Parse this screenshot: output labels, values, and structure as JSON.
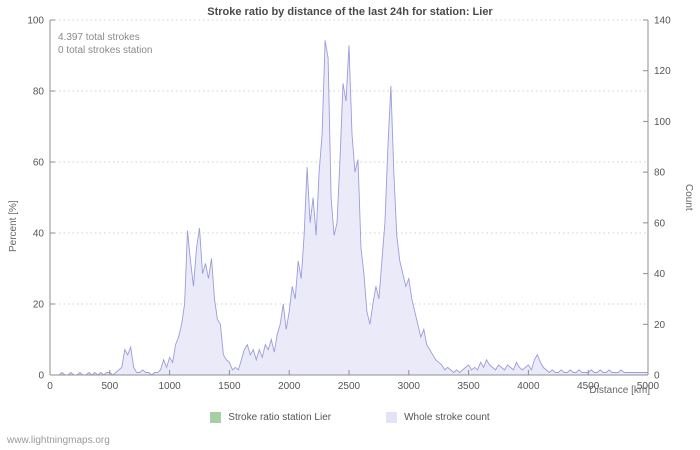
{
  "title": "Stroke ratio by distance of the last 24h for station: Lier",
  "annotations": {
    "total_strokes": "4.397 total strokes",
    "total_strokes_station": "0 total strokes station"
  },
  "axes": {
    "left_label": "Percent  [%]",
    "right_label": "Count",
    "x_label": "Distance  [km]",
    "left_ticks": [
      0,
      20,
      40,
      60,
      80,
      100
    ],
    "right_ticks": [
      0,
      20,
      40,
      60,
      80,
      100,
      120,
      140
    ],
    "x_ticks": [
      0,
      500,
      1000,
      1500,
      2000,
      2500,
      3000,
      3500,
      4000,
      4500,
      5000
    ]
  },
  "legend": [
    {
      "label": "Stroke ratio station Lier",
      "color": "#a6cfa6"
    },
    {
      "label": "Whole stroke count",
      "color": "#e3e3f6"
    }
  ],
  "footer": "www.lightningmaps.org",
  "colors": {
    "count_line": "#9c9cdc",
    "count_fill": "#eaeaf9",
    "grid": "#cfcfcf",
    "axis": "#8f8f8f"
  },
  "chart_data": {
    "type": "area",
    "title": "Stroke ratio by distance of the last 24h for station: Lier",
    "xlabel": "Distance [km]",
    "ylabel_left": "Percent [%]",
    "ylabel_right": "Count",
    "xlim": [
      0,
      5000
    ],
    "ylim_left": [
      0,
      100
    ],
    "ylim_right": [
      0,
      140
    ],
    "grid": true,
    "legend_position": "bottom",
    "x_start": 0,
    "x_step": 25,
    "n_points": 201,
    "series": [
      {
        "name": "Stroke ratio station Lier",
        "axis": "left",
        "color": "#a6cfa6",
        "constant_value": 0
      },
      {
        "name": "Whole stroke count",
        "axis": "right",
        "color": "#9c9cdc",
        "values": [
          0,
          0,
          0,
          0,
          1,
          0,
          0,
          1,
          0,
          0,
          1,
          0,
          0,
          1,
          0,
          1,
          0,
          1,
          0,
          1,
          1,
          0,
          1,
          2,
          3,
          10,
          8,
          11,
          3,
          1,
          1,
          2,
          1,
          1,
          0,
          1,
          1,
          2,
          6,
          3,
          7,
          5,
          12,
          15,
          20,
          28,
          57,
          45,
          35,
          50,
          58,
          40,
          44,
          38,
          46,
          30,
          22,
          20,
          8,
          6,
          5,
          2,
          3,
          2,
          6,
          10,
          12,
          8,
          10,
          6,
          10,
          7,
          12,
          10,
          14,
          9,
          16,
          20,
          28,
          18,
          25,
          35,
          30,
          45,
          38,
          55,
          82,
          60,
          70,
          55,
          80,
          95,
          132,
          125,
          70,
          55,
          60,
          85,
          115,
          108,
          130,
          95,
          80,
          85,
          50,
          40,
          25,
          20,
          28,
          35,
          30,
          45,
          60,
          90,
          114,
          80,
          55,
          45,
          40,
          35,
          38,
          30,
          25,
          20,
          15,
          18,
          12,
          10,
          8,
          6,
          5,
          4,
          2,
          3,
          2,
          1,
          2,
          1,
          2,
          3,
          4,
          2,
          3,
          2,
          5,
          3,
          6,
          4,
          3,
          2,
          4,
          3,
          2,
          4,
          3,
          2,
          5,
          3,
          2,
          3,
          4,
          2,
          6,
          8,
          5,
          3,
          2,
          1,
          2,
          1,
          1,
          2,
          1,
          1,
          2,
          1,
          1,
          2,
          1,
          1,
          1,
          2,
          1,
          1,
          2,
          1,
          1,
          2,
          1,
          1,
          1,
          2,
          1,
          1,
          1,
          1,
          1,
          1,
          1,
          1,
          1
        ]
      }
    ]
  }
}
